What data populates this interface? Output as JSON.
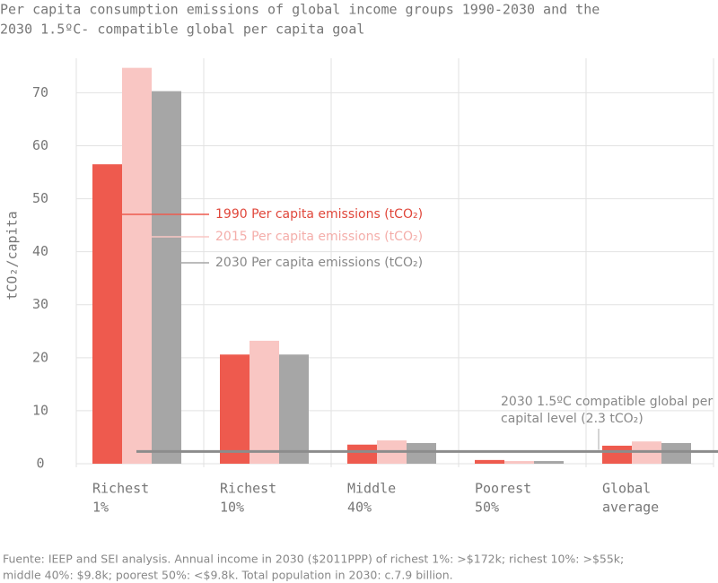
{
  "chart_data": {
    "type": "bar",
    "title": [
      "Per capita consumption emissions of global income groups 1990-2030 and the",
      "2030 1.5ºC- compatible global per capita goal"
    ],
    "y_label": "tCO₂/capita",
    "categories": [
      [
        "Richest",
        "1%"
      ],
      [
        "Richest",
        "10%"
      ],
      [
        "Middle",
        "40%"
      ],
      [
        "Poorest",
        "50%"
      ],
      [
        "Global",
        "average"
      ]
    ],
    "series": [
      {
        "name": "1990 Per capita emissions (tCO₂)",
        "color": "#ee5a4e",
        "values": [
          56.5,
          20.6,
          3.6,
          0.7,
          3.4
        ]
      },
      {
        "name": "2015 Per capita emissions (tCO₂)",
        "color": "#f9c6c3",
        "values": [
          74.7,
          23.2,
          4.4,
          0.5,
          4.2
        ]
      },
      {
        "name": "2030 Per capita emissions (tCO₂)",
        "color": "#a6a6a6",
        "values": [
          70.3,
          20.6,
          3.9,
          0.5,
          3.9
        ]
      }
    ],
    "goal": {
      "value": 2.3,
      "label": [
        "2030 1.5ºC compatible global per",
        "capital level (2.3 tCO₂)"
      ],
      "color": "#8c8c8c"
    },
    "ylim": [
      0,
      76.5
    ],
    "yticks": [
      0,
      10,
      20,
      30,
      40,
      50,
      60,
      70
    ],
    "grid": true,
    "source": [
      "Fuente: IEEP and SEI analysis. Annual income in 2030 ($2011PPP) of richest 1%: >$172k; richest 10%: >$55k;",
      "middle 40%: $9.8k; poorest 50%: <$9.8k. Total population in 2030: c.7.9 billion."
    ]
  }
}
